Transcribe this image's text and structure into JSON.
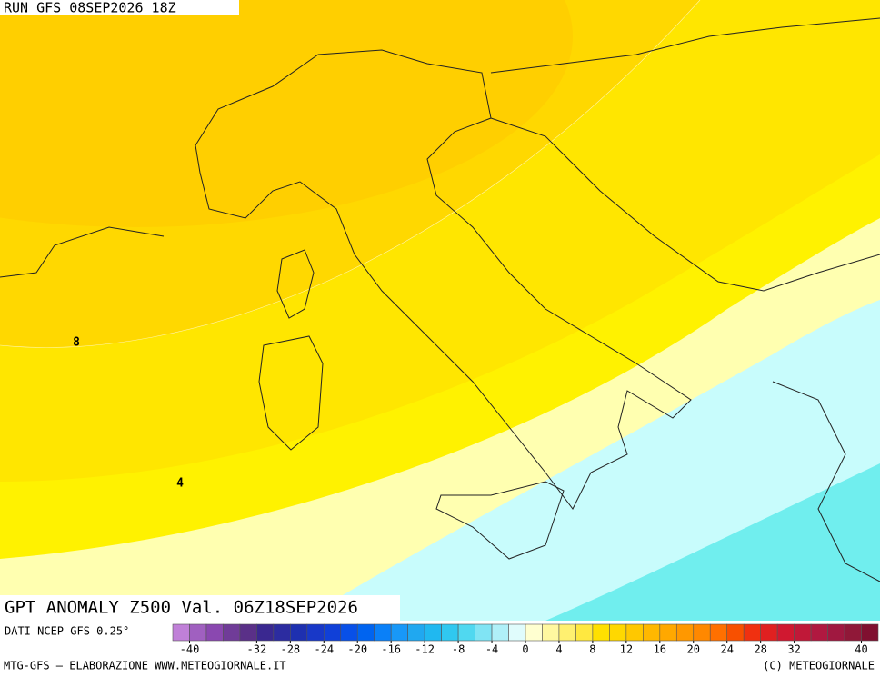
{
  "header": {
    "run": "RUN GFS 08SEP2026 18Z"
  },
  "map": {
    "title": "GPT ANOMALY Z500 Val. 06Z18SEP2026",
    "contour_labels": [
      {
        "value": 8
      },
      {
        "value": 4
      }
    ]
  },
  "colorbar": {
    "source": "DATI NCEP GFS 0.25°",
    "bounds": [
      -42,
      42
    ],
    "colors": [
      "#c080d8",
      "#a060c0",
      "#8a48b0",
      "#703c98",
      "#5a3088",
      "#3a2890",
      "#2c2ca0",
      "#1e30b0",
      "#1838c8",
      "#1040d8",
      "#0850e8",
      "#0064f0",
      "#0a80f8",
      "#1898f8",
      "#20a8f0",
      "#20b8f0",
      "#30c8f0",
      "#50d8f0",
      "#80e4f4",
      "#b0f0f8",
      "#e0fcfc",
      "#ffffd0",
      "#fff8a0",
      "#fff070",
      "#ffe840",
      "#ffe000",
      "#ffd800",
      "#ffc800",
      "#ffb800",
      "#ffa800",
      "#ff9800",
      "#ff8800",
      "#ff7000",
      "#f85000",
      "#f03010",
      "#e02020",
      "#d01830",
      "#c01838",
      "#b01840",
      "#a01840",
      "#901838",
      "#801030"
    ],
    "ticks": [
      -40,
      -32,
      -28,
      -24,
      -20,
      -16,
      -12,
      -8,
      -4,
      0,
      4,
      8,
      12,
      16,
      20,
      24,
      28,
      32,
      40
    ]
  },
  "footer": {
    "left": "MTG-GFS — ELABORAZIONE WWW.METEOGIORNALE.IT",
    "right": "(C) METEOGIORNALE"
  }
}
